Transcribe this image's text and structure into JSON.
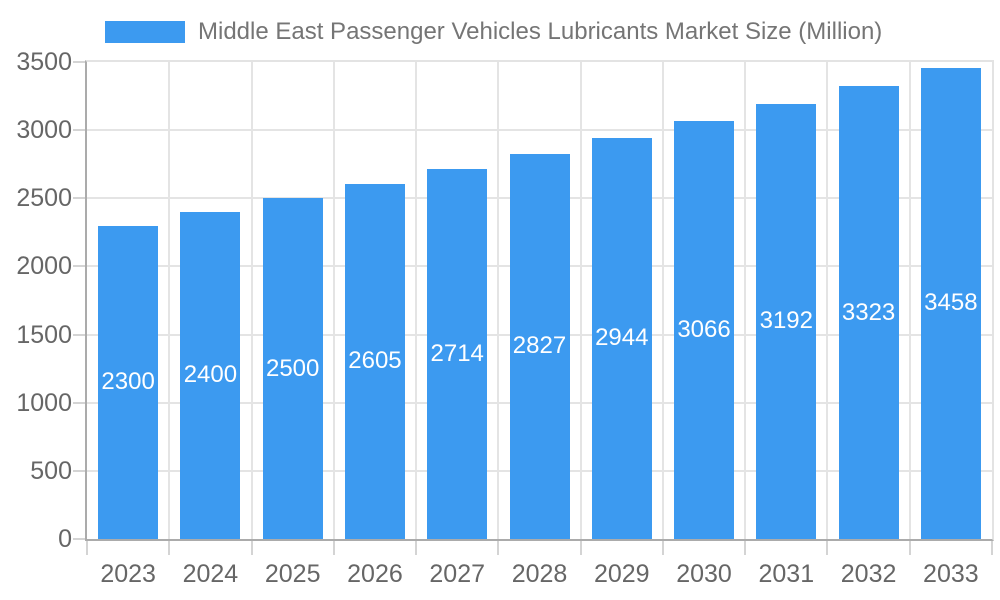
{
  "legend": {
    "label": "Middle East Passenger Vehicles Lubricants Market Size (Million)",
    "swatch_color": "#3C9AF0"
  },
  "chart_data": {
    "type": "bar",
    "title": "Middle East Passenger Vehicles Lubricants Market Size (Million)",
    "series": [
      {
        "name": "Middle East Passenger Vehicles Lubricants Market Size (Million)",
        "values": [
          2300,
          2400,
          2500,
          2605,
          2714,
          2827,
          2944,
          3066,
          3192,
          3323,
          3458
        ]
      }
    ],
    "categories": [
      "2023",
      "2024",
      "2025",
      "2026",
      "2027",
      "2028",
      "2029",
      "2030",
      "2031",
      "2032",
      "2033"
    ],
    "data_labels": [
      "2300",
      "2400",
      "2500",
      "2605",
      "2714",
      "2827",
      "2944",
      "3066",
      "3192",
      "3323",
      "3458"
    ],
    "xlabel": "",
    "ylabel": "",
    "ylim": [
      0,
      3500
    ],
    "ytick_step": 500,
    "y_tick_labels": [
      "0",
      "500",
      "1000",
      "1500",
      "2000",
      "2500",
      "3000",
      "3500"
    ],
    "grid": true,
    "legend_position": "top",
    "colors": {
      "bar": "#3C9AF0",
      "data_label_text": "#FFFFFF",
      "axis_line": "#ABABAB",
      "gridline": "#E4E4E4",
      "tick_mark": "#D4D4D4",
      "axis_text": "#666666",
      "legend_text": "#757575",
      "background": "#FFFFFF"
    }
  }
}
